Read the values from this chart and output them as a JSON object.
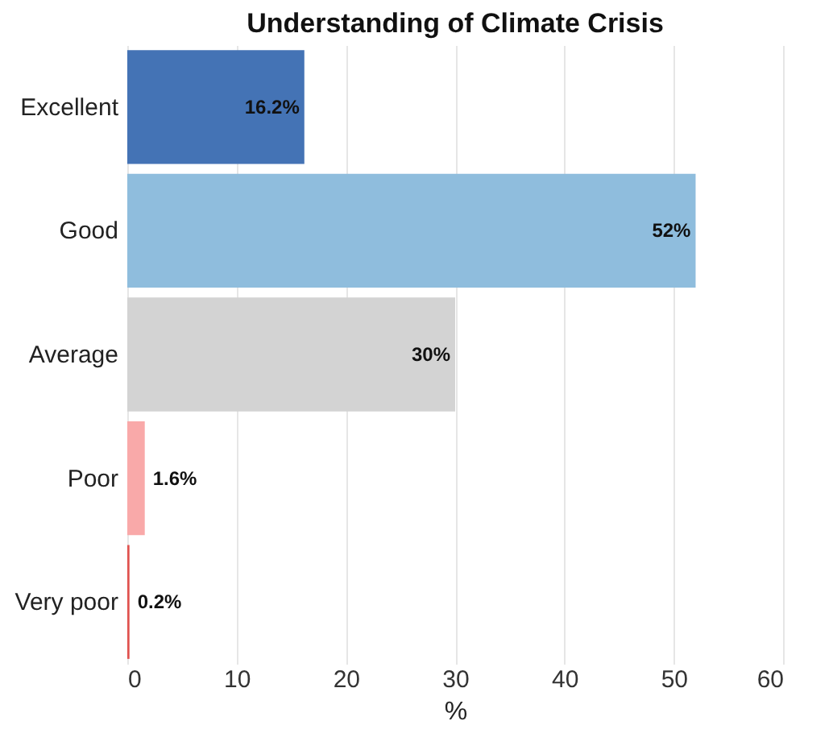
{
  "chart_data": {
    "type": "bar",
    "orientation": "horizontal",
    "title": "Understanding of Climate Crisis",
    "xlabel": "%",
    "categories": [
      "Excellent",
      "Good",
      "Average",
      "Poor",
      "Very poor"
    ],
    "values": [
      16.2,
      52,
      30,
      1.6,
      0.2
    ],
    "colors": [
      "#4473b5",
      "#8fbddd",
      "#d3d3d3",
      "#f9a9a9",
      "#e0524f"
    ],
    "value_labels": [
      "16.2%",
      "52%",
      "30%",
      "1.6%",
      "0.2%"
    ],
    "xlim": [
      0,
      60
    ],
    "xticks": [
      0,
      10,
      20,
      30,
      40,
      50,
      60
    ],
    "grid": "x"
  }
}
